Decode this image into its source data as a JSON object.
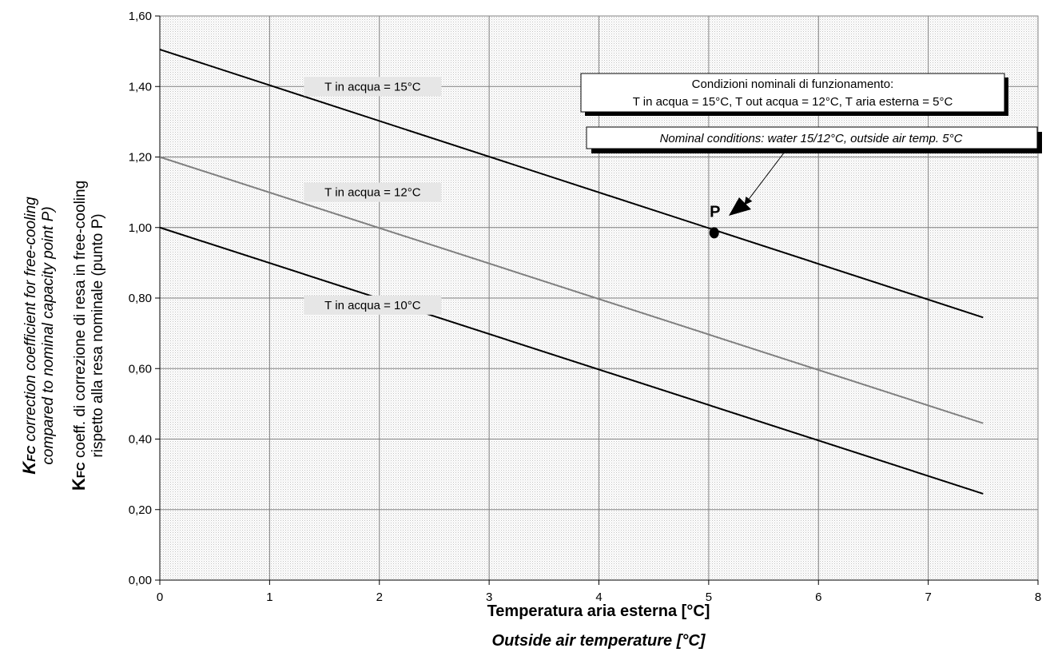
{
  "chart_data": {
    "type": "line",
    "xlabel": "Temperatura aria esterna [°C]",
    "xlabel_en": "Outside air temperature [°C]",
    "ylabel_it": {
      "k": "K",
      "fc": "FC",
      "line1_rest": " coeff. di correzione di resa in free-cooling",
      "line2": "rispetto alla resa nominale (punto P)"
    },
    "ylabel_en": {
      "k": "K",
      "fc": "FC",
      "line1_rest": " correction coefficient for free-cooling",
      "line2": "compared to nominal capacity point P)"
    },
    "xlim": [
      0,
      8
    ],
    "ylim": [
      0,
      1.6
    ],
    "x_ticks": [
      0,
      1,
      2,
      3,
      4,
      5,
      6,
      7,
      8
    ],
    "x_tick_labels": [
      "0",
      "1",
      "2",
      "3",
      "4",
      "5",
      "6",
      "7",
      "8"
    ],
    "y_ticks": [
      0,
      0.2,
      0.4,
      0.6,
      0.8,
      1.0,
      1.2,
      1.4,
      1.6
    ],
    "y_tick_labels": [
      "0,00",
      "0,20",
      "0,40",
      "0,60",
      "0,80",
      "1,00",
      "1,20",
      "1,40",
      "1,60"
    ],
    "grid": true,
    "series": [
      {
        "name": "T in acqua = 15°C",
        "x": [
          0,
          7.5
        ],
        "y": [
          1.505,
          0.745
        ],
        "color": "#000000",
        "label_at": [
          1.0,
          1.4
        ]
      },
      {
        "name": "T in acqua = 12°C",
        "x": [
          0,
          7.5
        ],
        "y": [
          1.2,
          0.445
        ],
        "color": "#808080",
        "label_at": [
          1.0,
          1.1
        ]
      },
      {
        "name": "T in acqua = 10°C",
        "x": [
          0,
          7.5
        ],
        "y": [
          1.0,
          0.245
        ],
        "color": "#000000",
        "label_at": [
          1.0,
          0.78
        ]
      }
    ],
    "point": {
      "label": "P",
      "x": 5.05,
      "y": 0.985
    },
    "annotations": {
      "box1_line1": "Condizioni nominali di funzionamento:",
      "box1_line2": "T in acqua = 15°C, T out acqua = 12°C, T aria esterna = 5°C",
      "box2": "Nominal conditions: water 15/12°C, outside air temp. 5°C"
    }
  }
}
